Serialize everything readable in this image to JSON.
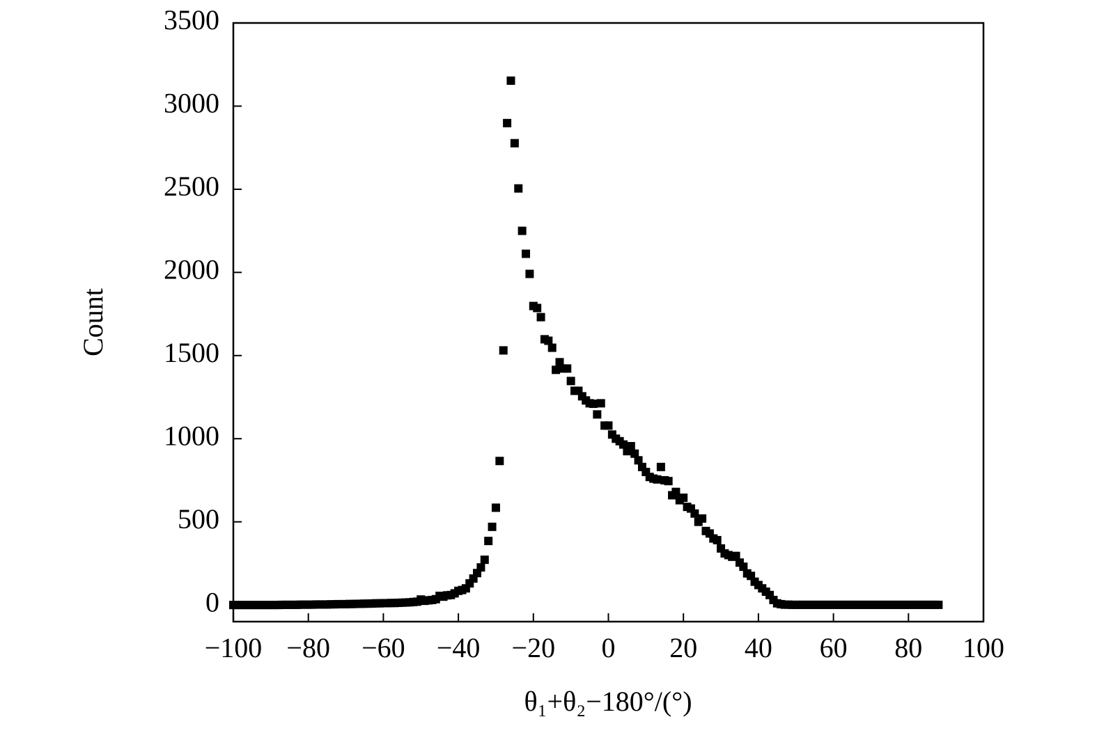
{
  "chart_data": {
    "type": "scatter",
    "xlabel": "θ₁+θ₂−180°/(°)",
    "ylabel": "Count",
    "xlim": [
      -100,
      100
    ],
    "ylim": [
      -100,
      3500
    ],
    "xticks": [
      {
        "value": -100,
        "label": "−100"
      },
      {
        "value": -80,
        "label": "−80"
      },
      {
        "value": -60,
        "label": "−60"
      },
      {
        "value": -40,
        "label": "−40"
      },
      {
        "value": -20,
        "label": "−20"
      },
      0,
      20,
      40,
      60,
      80,
      100
    ],
    "yticks": [
      0,
      500,
      1000,
      1500,
      2000,
      2500,
      3000,
      3500
    ],
    "color": "#000000",
    "x": [
      -100,
      -99,
      -98,
      -97,
      -96,
      -95,
      -94,
      -93,
      -92,
      -91,
      -90,
      -89,
      -88,
      -87,
      -86,
      -85,
      -84,
      -83,
      -82,
      -81,
      -80,
      -79,
      -78,
      -77,
      -76,
      -75,
      -74,
      -73,
      -72,
      -71,
      -70,
      -69,
      -68,
      -67,
      -66,
      -65,
      -64,
      -63,
      -62,
      -61,
      -60,
      -59,
      -58,
      -57,
      -56,
      -55,
      -54,
      -53,
      -52,
      -51,
      -50,
      -49,
      -48,
      -47,
      -46,
      -45,
      -44,
      -43,
      -42,
      -41,
      -40,
      -39,
      -38,
      -37,
      -36,
      -35,
      -34,
      -33,
      -32,
      -31,
      -30,
      -29,
      -28,
      -27,
      -26,
      -25,
      -24,
      -23,
      -22,
      -21,
      -20,
      -19,
      -18,
      -17,
      -16,
      -15,
      -14,
      -13,
      -12,
      -11,
      -10,
      -9,
      -8,
      -7,
      -6,
      -5,
      -4,
      -3,
      -2,
      -1,
      0,
      1,
      2,
      3,
      4,
      5,
      6,
      7,
      8,
      9,
      10,
      11,
      12,
      13,
      14,
      15,
      16,
      17,
      18,
      19,
      20,
      21,
      22,
      23,
      24,
      25,
      26,
      27,
      28,
      29,
      30,
      31,
      32,
      33,
      34,
      35,
      36,
      37,
      38,
      39,
      40,
      41,
      42,
      43,
      44,
      45,
      46,
      47,
      48,
      49,
      50,
      51,
      52,
      53,
      54,
      55,
      56,
      57,
      58,
      59,
      60,
      61,
      62,
      63,
      64,
      65,
      66,
      67,
      68,
      69,
      70,
      71,
      72,
      73,
      74,
      75,
      76,
      77,
      78,
      79,
      80,
      81,
      82,
      83,
      84,
      85,
      86,
      87,
      88
    ],
    "values": [
      0,
      0,
      0,
      0,
      0,
      0,
      0,
      0,
      0,
      0,
      0,
      0,
      0,
      1,
      1,
      1,
      1,
      1,
      2,
      2,
      2,
      2,
      3,
      3,
      3,
      3,
      4,
      4,
      5,
      5,
      5,
      6,
      6,
      7,
      7,
      8,
      8,
      9,
      10,
      10,
      11,
      11,
      12,
      12,
      13,
      14,
      15,
      16,
      18,
      20,
      33,
      25,
      28,
      30,
      35,
      55,
      50,
      58,
      60,
      70,
      85,
      90,
      100,
      130,
      159,
      192,
      226,
      272,
      385,
      470,
      585,
      866,
      1531,
      2898,
      3153,
      2777,
      2505,
      2250,
      2112,
      1991,
      1798,
      1786,
      1731,
      1598,
      1589,
      1547,
      1414,
      1460,
      1422,
      1422,
      1347,
      1288,
      1288,
      1255,
      1230,
      1213,
      1210,
      1146,
      1213,
      1079,
      1079,
      1025,
      1000,
      985,
      965,
      925,
      955,
      910,
      870,
      830,
      800,
      770,
      760,
      755,
      830,
      750,
      745,
      660,
      680,
      630,
      645,
      590,
      580,
      550,
      500,
      520,
      445,
      430,
      400,
      390,
      340,
      310,
      300,
      290,
      295,
      255,
      230,
      190,
      175,
      140,
      120,
      100,
      80,
      60,
      30,
      10,
      5,
      2,
      2,
      1,
      1,
      1,
      1,
      1,
      1,
      1,
      1,
      1,
      1,
      1,
      1,
      1,
      1,
      1,
      1,
      1,
      1,
      1,
      1,
      1,
      1,
      1,
      1,
      1,
      1,
      1,
      1,
      1,
      1,
      1,
      1,
      1,
      1,
      1,
      1,
      1,
      1,
      1,
      1
    ]
  }
}
